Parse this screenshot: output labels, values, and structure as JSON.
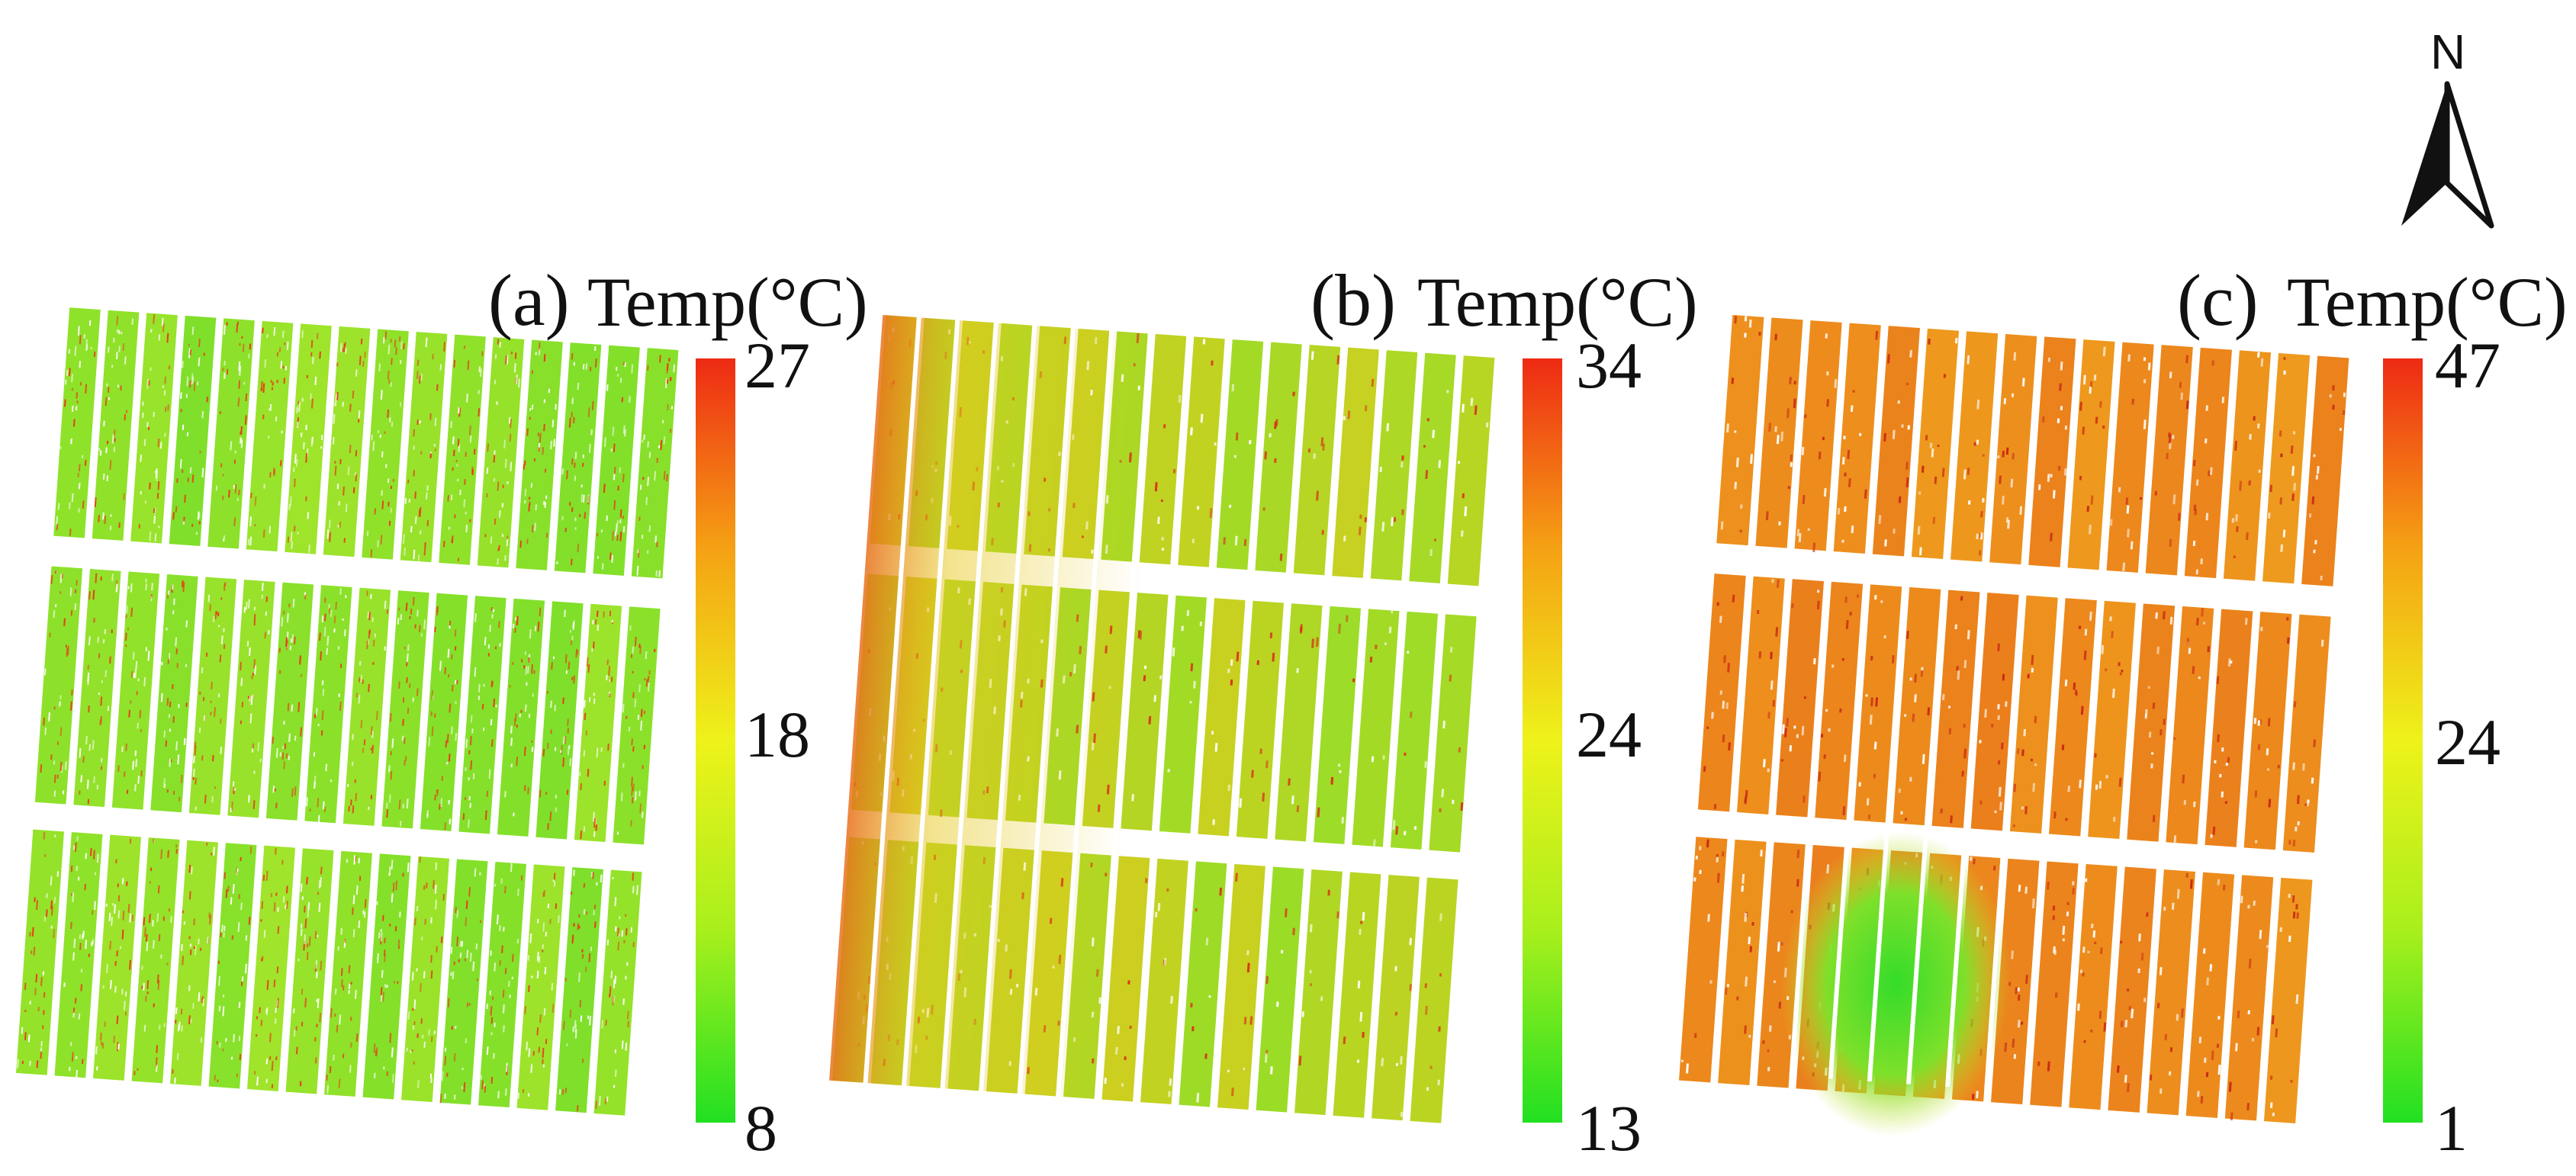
{
  "north_arrow": {
    "letter": "N"
  },
  "legend": {
    "colors": {
      "low": "#22e022",
      "mid": "#eef21a",
      "high": "#ee2a14"
    },
    "colors_stops": [
      "#22e022",
      "#a8ef1c",
      "#eef21a",
      "#f5a214",
      "#ee2a14"
    ]
  },
  "panels": [
    {
      "label": "(a)",
      "legend_title": "Temp(°C)",
      "ticks": {
        "max": "27",
        "mid": "18",
        "min": "8"
      },
      "field_tint": "green-dominant with scattered red speckles",
      "base_color": "#74de2a",
      "dense_color": "#b4e62c",
      "speckle_color": "#e83a18",
      "tilt_deg": 4
    },
    {
      "label": "(b)",
      "legend_title": "Temp(°C)",
      "ticks": {
        "max": "34",
        "mid": "24",
        "min": "13"
      },
      "field_tint": "yellow-green gradient, orange on west edge",
      "base_color": "#8fe02a",
      "dense_color": "#e6c81c",
      "speckle_color": "#d83418",
      "tilt_deg": 4
    },
    {
      "label": "(c)",
      "legend_title": "Temp(°C)",
      "ticks": {
        "max": "47",
        "mid": "24",
        "min": "1"
      },
      "field_tint": "orange-dominant with a green cool patch",
      "base_color": "#f0a21e",
      "dense_color": "#e8701c",
      "speckle_color": "#c82a14",
      "tilt_deg": 4
    }
  ]
}
